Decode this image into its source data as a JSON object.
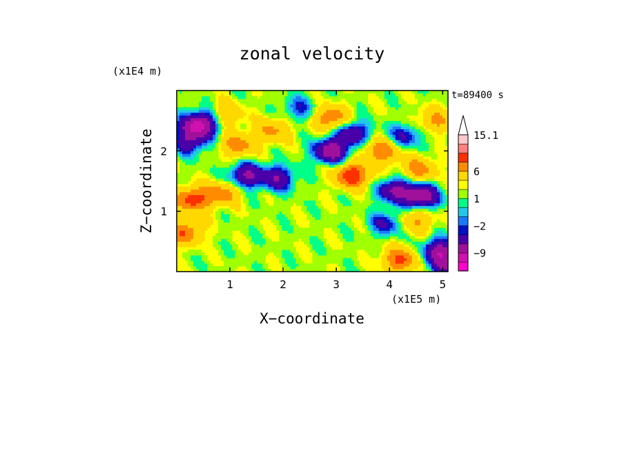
{
  "chart_data": {
    "type": "heatmap",
    "title": "zonal velocity",
    "xlabel": "X−coordinate",
    "ylabel": "Z−coordinate",
    "x_scale_label": "(x1E5 m)",
    "y_scale_label": "(x1E4 m)",
    "time_label": "t=89400 s",
    "xlim": [
      0,
      5.1
    ],
    "ylim": [
      0,
      3
    ],
    "x_ticks": [
      1,
      2,
      3,
      4,
      5
    ],
    "x_tick_labels": [
      "1",
      "2",
      "3",
      "4",
      "5"
    ],
    "y_ticks": [
      1,
      2
    ],
    "y_tick_labels": [
      "1",
      "2"
    ],
    "colorbar": {
      "levels": [
        -15,
        -12,
        -9,
        -6,
        -3,
        -2,
        -1,
        0,
        1,
        2,
        3,
        6,
        9,
        12,
        15.1
      ],
      "colors": [
        "#ff00cc",
        "#d010b0",
        "#a0109c",
        "#4a00a8",
        "#0010c8",
        "#1a78ff",
        "#22c8e8",
        "#00ff88",
        "#a0ff00",
        "#ffff00",
        "#ffd800",
        "#ff8c00",
        "#ff3000",
        "#ff8080",
        "#ffc8c8"
      ],
      "tick_values": [
        15.1,
        6,
        1,
        -2,
        -9
      ],
      "tick_labels": [
        "15.1",
        "6",
        "1",
        "−2",
        "−9"
      ]
    },
    "features": [
      {
        "x": 2.9,
        "z": 2.0,
        "value": -10
      },
      {
        "x": 3.3,
        "z": 2.3,
        "value": -7
      },
      {
        "x": 1.3,
        "z": 1.6,
        "value": -8
      },
      {
        "x": 1.9,
        "z": 1.55,
        "value": -7
      },
      {
        "x": 4.6,
        "z": 1.25,
        "value": -10
      },
      {
        "x": 4.1,
        "z": 1.35,
        "value": -8
      },
      {
        "x": 3.95,
        "z": 0.8,
        "value": -5
      },
      {
        "x": 0.35,
        "z": 2.4,
        "value": -8
      },
      {
        "x": 0.25,
        "z": 2.15,
        "value": -6
      },
      {
        "x": 0.55,
        "z": 2.5,
        "value": -6
      },
      {
        "x": 4.95,
        "z": 0.35,
        "value": -9
      },
      {
        "x": 5.05,
        "z": 0.1,
        "value": -6
      },
      {
        "x": 4.3,
        "z": 2.25,
        "value": -5
      },
      {
        "x": 2.3,
        "z": 2.7,
        "value": -4
      },
      {
        "x": 3.3,
        "z": 1.6,
        "value": 10
      },
      {
        "x": 2.9,
        "z": 2.55,
        "value": 7
      },
      {
        "x": 0.3,
        "z": 1.2,
        "value": 9
      },
      {
        "x": 0.15,
        "z": 0.65,
        "value": 7
      },
      {
        "x": 1.15,
        "z": 2.1,
        "value": 6
      },
      {
        "x": 0.85,
        "z": 1.3,
        "value": 6
      },
      {
        "x": 3.85,
        "z": 2.0,
        "value": 7
      },
      {
        "x": 4.2,
        "z": 0.2,
        "value": 8
      },
      {
        "x": 4.55,
        "z": 1.7,
        "value": 6
      },
      {
        "x": 4.85,
        "z": 2.5,
        "value": 5
      },
      {
        "x": 1.8,
        "z": 2.35,
        "value": 5
      },
      {
        "x": 4.5,
        "z": 0.85,
        "value": 5
      },
      {
        "x": 0.9,
        "z": 2.6,
        "value": 5
      }
    ]
  }
}
